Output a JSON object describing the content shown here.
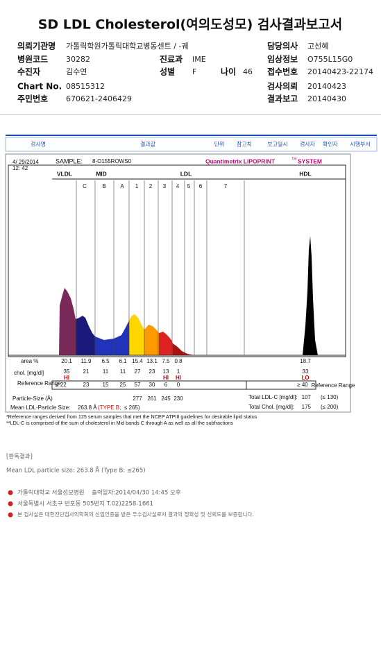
{
  "header": {
    "title": "SD LDL Cholesterol(여의도성모) 검사결과보고서",
    "fields": [
      {
        "label": "의뢰기관명",
        "value": "가톨릭학원가톨릭대학교병동센트 / -궤"
      },
      {
        "label": "담당의사",
        "value": "고선혜"
      },
      {
        "label": "병원코드",
        "value": "30282"
      },
      {
        "label": "진료과",
        "value": "IME"
      },
      {
        "label": "임상정보",
        "value": "O755L15G0"
      },
      {
        "label": "수진자",
        "value": "김수연"
      },
      {
        "label": "성별",
        "value": "F"
      },
      {
        "label": "나이",
        "value": "46"
      },
      {
        "label": "접수번호",
        "value": "20140423-22174"
      },
      {
        "label": "Chart No.",
        "value": "08515312"
      },
      {
        "label": "검사의뢰",
        "value": "20140423"
      },
      {
        "label": "주민번호",
        "value": "670621-2406429"
      },
      {
        "label": "결과보고",
        "value": "20140430"
      }
    ]
  },
  "table_header": [
    "검사명",
    "결과값",
    "단위",
    "참고치",
    "보고일시",
    "검사자",
    "확인자",
    "시행부서"
  ],
  "report": {
    "date": "4/ 29/2014",
    "time": "12: 42",
    "sample_label": "SAMPLE:",
    "sample_id": "8-O155ROWS0",
    "brand": "Quantimetrix LIPOPRINT",
    "brand_tm": "TM",
    "brand_system": "SYSTEM",
    "fractions": [
      "VLDL",
      "MID",
      "LDL",
      "HDL"
    ],
    "bands": [
      "C",
      "B",
      "A",
      "1",
      "2",
      "3",
      "4",
      "5",
      "6",
      "7"
    ],
    "area": {
      "label": "area %",
      "values": [
        20.1,
        11.9,
        6.5,
        6.1,
        15.4,
        13.1,
        7.5,
        0.8,
        18.7
      ]
    },
    "chol": {
      "label": "chol. [mg/dl]",
      "values": [
        35,
        21,
        11,
        11,
        27,
        23,
        13,
        1,
        33
      ],
      "flags": [
        "HI",
        null,
        null,
        null,
        null,
        null,
        "HI",
        "HI",
        "LO"
      ]
    },
    "reference": {
      "label": "Reference Range",
      "values": [
        "≤ 22",
        "23",
        "15",
        "25",
        "57",
        "30",
        "6",
        "0",
        "≥ 40"
      ],
      "label_right": "Reference Range"
    },
    "particle_size": {
      "label": "Particle-Size (Å)",
      "values": [
        277,
        261,
        245,
        230
      ]
    },
    "mean_size": {
      "label": "Mean LDL-Particle Size:",
      "value": "263.8 Å",
      "type": "(TYPE B;",
      "limit": "≤ 265)"
    },
    "total_ldl": {
      "label": "Total LDL-C [mg/dl]:",
      "value": 107,
      "limit": "(≤ 130)"
    },
    "total_chol": {
      "label": "Total Chol. [mg/dl]:",
      "value": 175,
      "limit": "(≤ 200)"
    },
    "footnotes": [
      "*Reference ranges derived from 125 serum samples that met the NCEP ATPIII guidelines for desirable lipid status",
      "**LDL-C is comprised of the sum of cholesterol in Mid bands C through A as well as all the subfractions"
    ]
  },
  "interpretation": {
    "heading": "[판독결과]",
    "text": "Mean LDL particle size: 263.8 Å (Type B: ≤265)"
  },
  "footer": {
    "hospital": "가톨릭대학교 서울성모병원",
    "printed": "출력일자:2014/04/30 14:45 오후",
    "address": "서울특별시 서초구 반포동 505번지 T.02)2258-1661",
    "certification": "본 검사실은 대한진단검사의학회의 신임인증을 받은 우수검사실로서 결과의 정확성 및 신뢰도를 보증합니다."
  }
}
